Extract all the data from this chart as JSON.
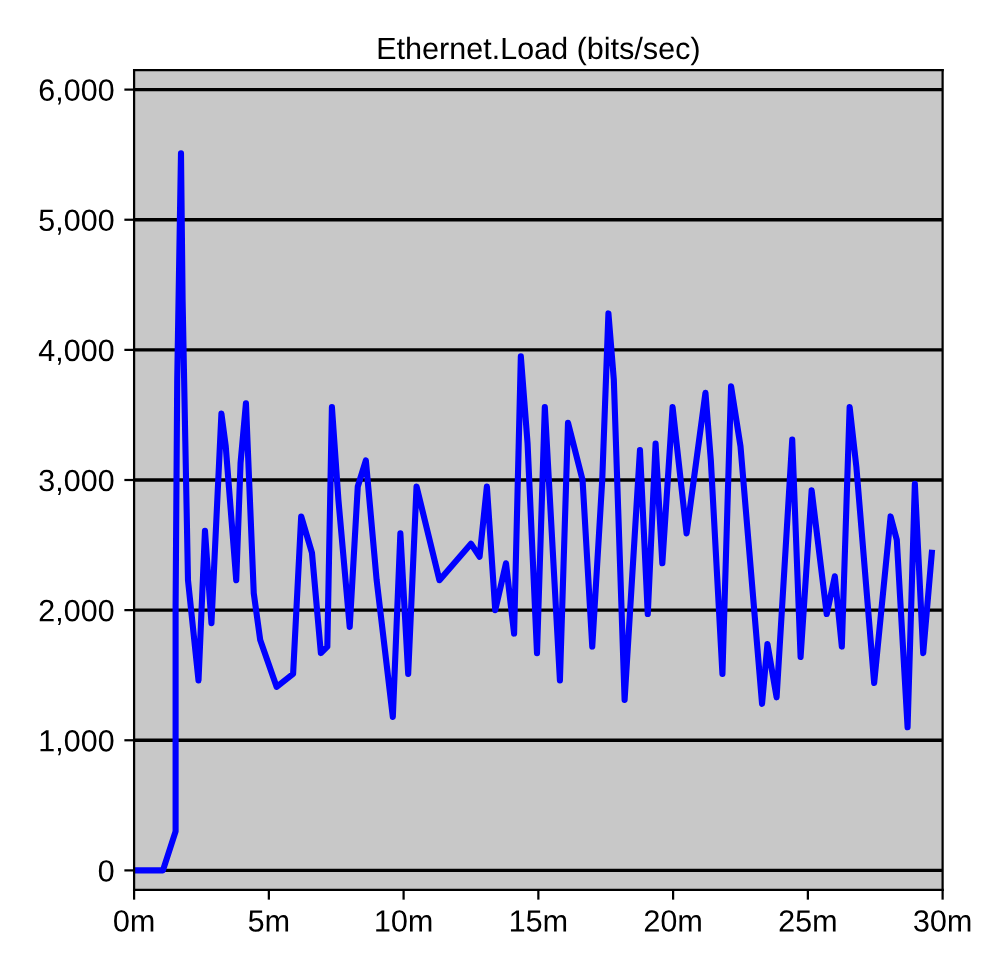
{
  "chart_data": {
    "type": "line",
    "title": "Ethernet.Load (bits/sec)",
    "x": [
      0,
      1.07,
      1.54,
      1.54,
      1.6,
      1.74,
      1.8,
      1.9,
      2.0,
      2.39,
      2.63,
      2.87,
      3.24,
      3.4,
      3.79,
      3.95,
      4.15,
      4.44,
      4.68,
      5.29,
      5.9,
      6.2,
      6.6,
      6.93,
      7.17,
      7.34,
      7.58,
      8.0,
      8.3,
      8.6,
      9.0,
      9.6,
      9.88,
      10.17,
      10.48,
      11.33,
      12.5,
      12.82,
      13.09,
      13.4,
      13.8,
      14.1,
      14.35,
      14.6,
      14.95,
      15.24,
      15.8,
      16.1,
      16.64,
      17.0,
      17.37,
      17.6,
      17.8,
      18.2,
      18.77,
      19.06,
      19.35,
      19.6,
      19.98,
      20.5,
      21.2,
      21.4,
      21.83,
      22.15,
      22.5,
      23.3,
      23.5,
      23.84,
      24.42,
      24.73,
      25.14,
      25.7,
      26.0,
      26.26,
      26.55,
      26.8,
      27.46,
      28.07,
      28.3,
      28.7,
      28.97,
      29.28,
      29.6
    ],
    "series": [
      {
        "color": "#0000ff",
        "values": [
          0,
          0,
          300,
          2030,
          3770,
          5510,
          4380,
          3300,
          2230,
          1460,
          2610,
          1900,
          3510,
          3260,
          2230,
          3130,
          3590,
          2130,
          1770,
          1410,
          1510,
          2720,
          2440,
          1670,
          1720,
          3560,
          2850,
          1870,
          2950,
          3150,
          2230,
          1180,
          2590,
          1510,
          2950,
          2230,
          2510,
          2410,
          2950,
          2000,
          2360,
          1820,
          3950,
          3280,
          1670,
          3560,
          1460,
          3440,
          3000,
          1720,
          3000,
          4280,
          3770,
          1310,
          3230,
          1970,
          3280,
          2360,
          3560,
          2590,
          3670,
          3150,
          1510,
          3720,
          3260,
          1280,
          1740,
          1330,
          3310,
          1640,
          2920,
          1970,
          2260,
          1720,
          3560,
          3100,
          1440,
          2720,
          2540,
          1100,
          2970,
          1670,
          2440
        ]
      }
    ],
    "xlim": [
      0,
      30
    ],
    "xticks": [
      {
        "value": 0,
        "label": "0m"
      },
      {
        "value": 5,
        "label": "5m"
      },
      {
        "value": 10,
        "label": "10m"
      },
      {
        "value": 15,
        "label": "15m"
      },
      {
        "value": 20,
        "label": "20m"
      },
      {
        "value": 25,
        "label": "25m"
      },
      {
        "value": 30,
        "label": "30m"
      }
    ],
    "ylim": [
      -150,
      6150
    ],
    "yticks": [
      {
        "value": 0,
        "label": "0"
      },
      {
        "value": 1000,
        "label": "1,000"
      },
      {
        "value": 2000,
        "label": "2,000"
      },
      {
        "value": 3000,
        "label": "3,000"
      },
      {
        "value": 4000,
        "label": "4,000"
      },
      {
        "value": 5000,
        "label": "5,000"
      },
      {
        "value": 6000,
        "label": "6,000"
      }
    ],
    "grid": "y"
  }
}
